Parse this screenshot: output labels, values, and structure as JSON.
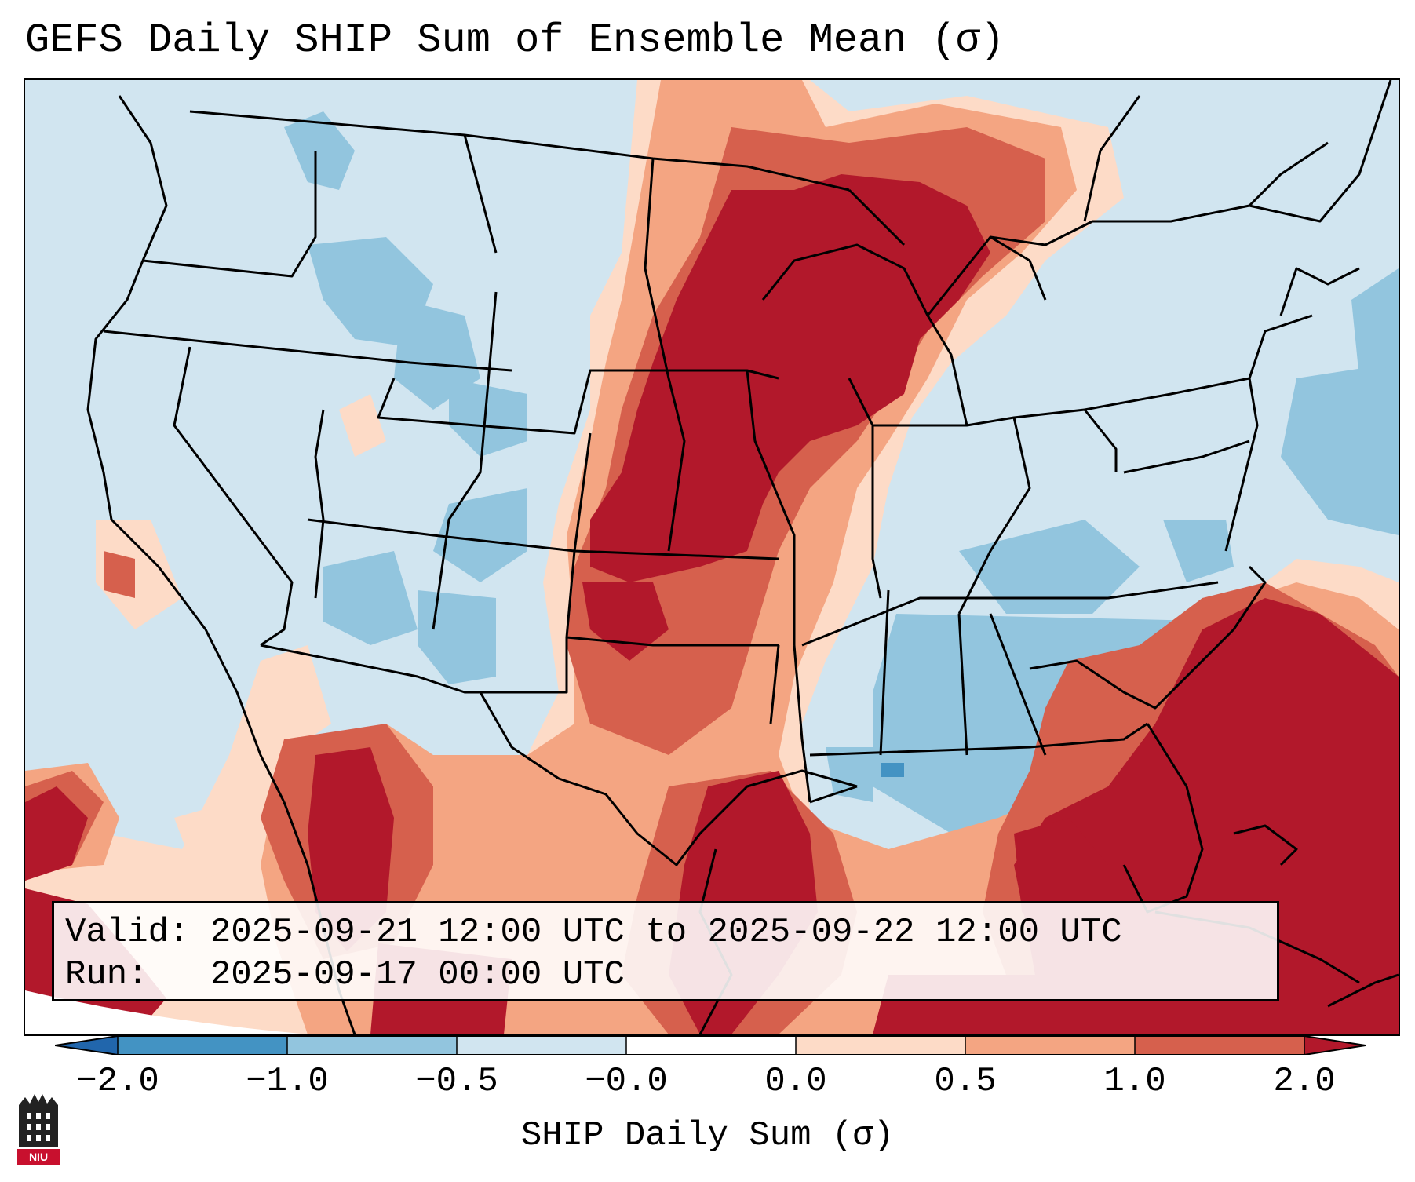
{
  "title": "GEFS Daily SHIP Sum of Ensemble Mean (σ)",
  "info": {
    "valid_label": "Valid:",
    "valid_value": "2025-09-21 12:00 UTC to 2025-09-22 12:00 UTC",
    "run_label": "Run:",
    "run_value": "2025-09-17 00:00 UTC"
  },
  "colorbar": {
    "label": "SHIP Daily Sum (σ)",
    "ticks": [
      "−2.0",
      "−1.0",
      "−0.5",
      "−0.0",
      "0.0",
      "0.5",
      "1.0",
      "2.0"
    ],
    "colors": [
      "#2166ac",
      "#4393c3",
      "#92c5de",
      "#d1e5f0",
      "#ffffff",
      "#fddbc7",
      "#f4a582",
      "#d6604d",
      "#b2182b"
    ]
  },
  "logo": {
    "text": "NIU"
  },
  "icons": [
    "niu-logo-icon"
  ]
}
